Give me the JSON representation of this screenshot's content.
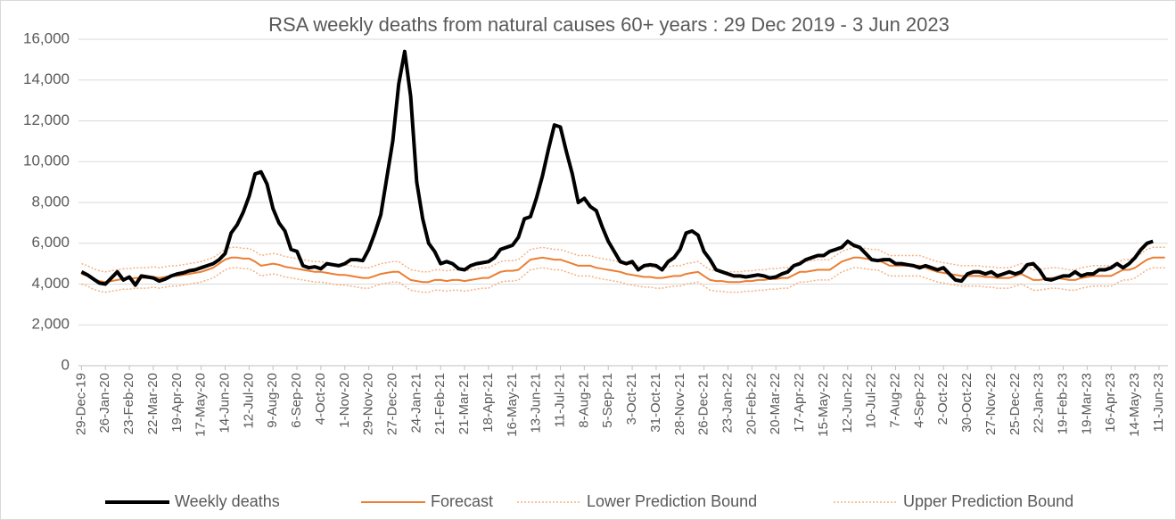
{
  "chart_data": {
    "type": "line",
    "title": "RSA weekly deaths from natural causes 60+ years : 29 Dec 2019 - 3 Jun 2023",
    "categories": [
      "29-Dec-19",
      null,
      null,
      null,
      "26-Jan-20",
      null,
      null,
      null,
      "23-Feb-20",
      null,
      null,
      null,
      "22-Mar-20",
      null,
      null,
      null,
      "19-Apr-20",
      null,
      null,
      null,
      "17-May-20",
      null,
      null,
      null,
      "14-Jun-20",
      null,
      null,
      null,
      "12-Jul-20",
      null,
      null,
      null,
      "9-Aug-20",
      null,
      null,
      null,
      "6-Sep-20",
      null,
      null,
      null,
      "4-Oct-20",
      null,
      null,
      null,
      "1-Nov-20",
      null,
      null,
      null,
      "29-Nov-20",
      null,
      null,
      null,
      "27-Dec-20",
      null,
      null,
      null,
      "24-Jan-21",
      null,
      null,
      null,
      "21-Feb-21",
      null,
      null,
      null,
      "21-Mar-21",
      null,
      null,
      null,
      "18-Apr-21",
      null,
      null,
      null,
      "16-May-21",
      null,
      null,
      null,
      "13-Jun-21",
      null,
      null,
      null,
      "11-Jul-21",
      null,
      null,
      null,
      "8-Aug-21",
      null,
      null,
      null,
      "5-Sep-21",
      null,
      null,
      null,
      "3-Oct-21",
      null,
      null,
      null,
      "31-Oct-21",
      null,
      null,
      null,
      "28-Nov-21",
      null,
      null,
      null,
      "26-Dec-21",
      null,
      null,
      null,
      "23-Jan-22",
      null,
      null,
      null,
      "20-Feb-22",
      null,
      null,
      null,
      "20-Mar-22",
      null,
      null,
      null,
      "17-Apr-22",
      null,
      null,
      null,
      "15-May-22",
      null,
      null,
      null,
      "12-Jun-22",
      null,
      null,
      null,
      "10-Jul-22",
      null,
      null,
      null,
      "7-Aug-22",
      null,
      null,
      null,
      "4-Sep-22",
      null,
      null,
      null,
      "2-Oct-22",
      null,
      null,
      null,
      "30-Oct-22",
      null,
      null,
      null,
      "27-Nov-22",
      null,
      null,
      null,
      "25-Dec-22",
      null,
      null,
      null,
      "22-Jan-23",
      null,
      null,
      null,
      "19-Feb-23",
      null,
      null,
      null,
      "19-Mar-23",
      null,
      null,
      null,
      "16-Apr-23",
      null,
      null,
      null,
      "14-May-23",
      null,
      null,
      null,
      "11-Jun-23",
      null
    ],
    "series": [
      {
        "name": "Weekly deaths",
        "color": "#000000",
        "style": "thick",
        "values": [
          4600,
          4450,
          4250,
          4050,
          4000,
          4300,
          4600,
          4200,
          4350,
          3950,
          4400,
          4350,
          4300,
          4150,
          4250,
          4400,
          4500,
          4550,
          4650,
          4700,
          4800,
          4900,
          5000,
          5200,
          5500,
          6500,
          6900,
          7500,
          8300,
          9400,
          9500,
          8900,
          7700,
          7000,
          6600,
          5700,
          5600,
          4900,
          4800,
          4850,
          4750,
          5000,
          4950,
          4900,
          5000,
          5200,
          5200,
          5150,
          5700,
          6500,
          7400,
          9200,
          11000,
          13800,
          15400,
          13200,
          9000,
          7200,
          6000,
          5600,
          5000,
          5100,
          5000,
          4750,
          4700,
          4900,
          5000,
          5050,
          5100,
          5300,
          5700,
          5800,
          5900,
          6300,
          7200,
          7300,
          8200,
          9300,
          10600,
          11800,
          11700,
          10500,
          9400,
          8000,
          8200,
          7800,
          7600,
          6800,
          6100,
          5600,
          5100,
          5000,
          5100,
          4700,
          4900,
          4950,
          4900,
          4700,
          5100,
          5300,
          5700,
          6500,
          6600,
          6400,
          5600,
          5200,
          4700,
          4600,
          4500,
          4400,
          4400,
          4350,
          4400,
          4450,
          4400,
          4300,
          4350,
          4500,
          4600,
          4900,
          5000,
          5200,
          5300,
          5400,
          5400,
          5600,
          5700,
          5800,
          6100,
          5900,
          5800,
          5500,
          5200,
          5150,
          5200,
          5200,
          5000,
          5000,
          4950,
          4900,
          4800,
          4900,
          4800,
          4700,
          4800,
          4500,
          4200,
          4150,
          4500,
          4600,
          4600,
          4500,
          4600,
          4400,
          4500,
          4600,
          4500,
          4600,
          4950,
          5000,
          4700,
          4250,
          4200,
          4300,
          4400,
          4400,
          4600,
          4400,
          4500,
          4500,
          4700,
          4700,
          4800,
          5000,
          4800,
          5000,
          5300,
          5700,
          6000,
          6100,
          null,
          null
        ]
      },
      {
        "name": "Forecast",
        "color": "#ed7d31",
        "style": "solid",
        "values": [
          4500,
          4400,
          4250,
          4150,
          4100,
          4150,
          4200,
          4250,
          4250,
          4300,
          4300,
          4300,
          4350,
          4300,
          4350,
          4400,
          4400,
          4450,
          4500,
          4550,
          4600,
          4700,
          4800,
          5000,
          5200,
          5300,
          5300,
          5250,
          5250,
          5100,
          4900,
          4950,
          5000,
          4950,
          4850,
          4800,
          4750,
          4700,
          4650,
          4600,
          4600,
          4550,
          4500,
          4450,
          4450,
          4400,
          4350,
          4300,
          4300,
          4400,
          4500,
          4550,
          4600,
          4600,
          4400,
          4200,
          4150,
          4100,
          4100,
          4200,
          4200,
          4150,
          4200,
          4200,
          4150,
          4200,
          4250,
          4300,
          4300,
          4450,
          4600,
          4650,
          4650,
          4700,
          4950,
          5200,
          5250,
          5300,
          5250,
          5200,
          5200,
          5100,
          5000,
          4900,
          4900,
          4900,
          4800,
          4750,
          4700,
          4650,
          4600,
          4500,
          4450,
          4400,
          4350,
          4350,
          4300,
          4300,
          4350,
          4400,
          4400,
          4500,
          4550,
          4600,
          4400,
          4200,
          4150,
          4150,
          4100,
          4100,
          4100,
          4150,
          4150,
          4200,
          4200,
          4250,
          4250,
          4300,
          4300,
          4450,
          4600,
          4600,
          4650,
          4700,
          4700,
          4700,
          4900,
          5100,
          5200,
          5300,
          5300,
          5250,
          5200,
          5200,
          5050,
          4900,
          4900,
          4900,
          4900,
          4900,
          4900,
          4800,
          4700,
          4600,
          4550,
          4500,
          4450,
          4400,
          4400,
          4400,
          4400,
          4350,
          4350,
          4300,
          4300,
          4300,
          4400,
          4500,
          4350,
          4200,
          4200,
          4250,
          4300,
          4300,
          4250,
          4200,
          4200,
          4300,
          4350,
          4400,
          4400,
          4400,
          4400,
          4550,
          4700,
          4700,
          4800,
          5000,
          5200,
          5300,
          5300,
          5300
        ]
      },
      {
        "name": "Lower Prediction Bound",
        "color": "#f4b183",
        "style": "dotted",
        "values": [
          4000,
          3900,
          3750,
          3650,
          3600,
          3650,
          3700,
          3750,
          3750,
          3800,
          3800,
          3800,
          3850,
          3800,
          3850,
          3900,
          3900,
          3950,
          4000,
          4050,
          4100,
          4200,
          4300,
          4500,
          4700,
          4800,
          4800,
          4750,
          4750,
          4600,
          4400,
          4450,
          4500,
          4450,
          4350,
          4300,
          4250,
          4200,
          4150,
          4100,
          4100,
          4050,
          4000,
          3950,
          3950,
          3900,
          3850,
          3800,
          3800,
          3900,
          4000,
          4050,
          4100,
          4100,
          3900,
          3700,
          3650,
          3600,
          3600,
          3700,
          3700,
          3650,
          3700,
          3700,
          3650,
          3700,
          3750,
          3800,
          3800,
          3950,
          4100,
          4150,
          4150,
          4200,
          4450,
          4700,
          4750,
          4800,
          4750,
          4700,
          4700,
          4600,
          4500,
          4400,
          4400,
          4400,
          4300,
          4250,
          4200,
          4150,
          4100,
          4000,
          3950,
          3900,
          3850,
          3850,
          3800,
          3800,
          3850,
          3900,
          3900,
          4000,
          4050,
          4100,
          3900,
          3700,
          3650,
          3650,
          3600,
          3600,
          3600,
          3650,
          3650,
          3700,
          3700,
          3750,
          3750,
          3800,
          3800,
          3950,
          4100,
          4100,
          4150,
          4200,
          4200,
          4200,
          4400,
          4600,
          4700,
          4800,
          4800,
          4750,
          4700,
          4700,
          4550,
          4400,
          4400,
          4400,
          4400,
          4400,
          4400,
          4300,
          4200,
          4100,
          4050,
          4000,
          3950,
          3900,
          3900,
          3900,
          3900,
          3850,
          3850,
          3800,
          3800,
          3800,
          3900,
          4000,
          3850,
          3700,
          3700,
          3750,
          3800,
          3800,
          3750,
          3700,
          3700,
          3800,
          3850,
          3900,
          3900,
          3900,
          3900,
          4050,
          4200,
          4200,
          4300,
          4500,
          4700,
          4800,
          4800,
          4800
        ]
      },
      {
        "name": "Upper Prediction Bound",
        "color": "#f4b183",
        "style": "dotted",
        "values": [
          5000,
          4900,
          4750,
          4650,
          4600,
          4650,
          4700,
          4750,
          4750,
          4800,
          4800,
          4800,
          4850,
          4800,
          4850,
          4900,
          4900,
          4950,
          5000,
          5050,
          5100,
          5200,
          5300,
          5500,
          5700,
          5800,
          5800,
          5750,
          5750,
          5600,
          5400,
          5450,
          5500,
          5450,
          5350,
          5300,
          5250,
          5200,
          5150,
          5100,
          5100,
          5050,
          5000,
          4950,
          4950,
          4900,
          4850,
          4800,
          4800,
          4900,
          5000,
          5050,
          5100,
          5100,
          4900,
          4700,
          4650,
          4600,
          4600,
          4700,
          4700,
          4650,
          4700,
          4700,
          4650,
          4700,
          4750,
          4800,
          4800,
          4950,
          5100,
          5150,
          5150,
          5200,
          5450,
          5700,
          5750,
          5800,
          5750,
          5700,
          5700,
          5600,
          5500,
          5400,
          5400,
          5400,
          5300,
          5250,
          5200,
          5150,
          5100,
          5000,
          4950,
          4900,
          4850,
          4850,
          4800,
          4800,
          4850,
          4900,
          4900,
          5000,
          5050,
          5100,
          4900,
          4700,
          4650,
          4650,
          4600,
          4600,
          4600,
          4650,
          4650,
          4700,
          4700,
          4750,
          4750,
          4800,
          4800,
          4950,
          5100,
          5100,
          5150,
          5200,
          5200,
          5200,
          5400,
          5600,
          5700,
          5800,
          5800,
          5750,
          5700,
          5700,
          5550,
          5400,
          5400,
          5400,
          5400,
          5400,
          5400,
          5300,
          5200,
          5100,
          5050,
          5000,
          4950,
          4900,
          4900,
          4900,
          4900,
          4850,
          4850,
          4800,
          4800,
          4800,
          4900,
          5000,
          4850,
          4700,
          4700,
          4750,
          4800,
          4800,
          4750,
          4700,
          4700,
          4800,
          4850,
          4900,
          4900,
          4900,
          4900,
          5050,
          5200,
          5200,
          5300,
          5500,
          5700,
          5800,
          5800,
          5800
        ]
      }
    ],
    "ylim": [
      0,
      16000
    ],
    "yticks": [
      0,
      {
        "value": 2000,
        "label": "2,000"
      },
      {
        "value": 4000,
        "label": "4,000"
      },
      {
        "value": 6000,
        "label": "6,000"
      },
      {
        "value": 8000,
        "label": "8,000"
      },
      {
        "value": 10000,
        "label": "10,000"
      },
      {
        "value": 12000,
        "label": "12,000"
      },
      {
        "value": 14000,
        "label": "14,000"
      },
      {
        "value": 16000,
        "label": "16,000"
      }
    ],
    "grid": true,
    "legend": "bottom"
  }
}
